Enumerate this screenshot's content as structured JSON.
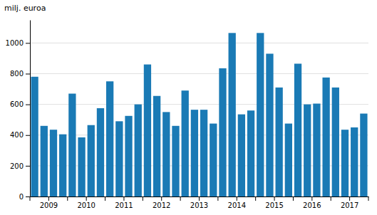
{
  "chart_data": {
    "type": "bar",
    "ylabel": "milj. euroa",
    "categories": [
      "2009",
      null,
      null,
      null,
      "2010",
      null,
      null,
      null,
      "2011",
      null,
      null,
      null,
      "2012",
      null,
      null,
      null,
      "2013",
      null,
      null,
      null,
      "2014",
      null,
      null,
      null,
      "2015",
      null,
      null,
      null,
      "2016",
      null,
      null,
      null,
      "2017",
      null,
      null,
      null
    ],
    "values": [
      780,
      460,
      435,
      405,
      670,
      385,
      465,
      575,
      750,
      490,
      525,
      600,
      860,
      655,
      550,
      460,
      690,
      565,
      565,
      475,
      835,
      1065,
      535,
      560,
      1065,
      930,
      710,
      475,
      865,
      600,
      605,
      775,
      710,
      435,
      450,
      540
    ],
    "color": "#1a7ab5",
    "ylim": [
      0,
      1150
    ],
    "yticks": [
      0,
      200,
      400,
      600,
      800,
      1000
    ],
    "grid": true
  }
}
